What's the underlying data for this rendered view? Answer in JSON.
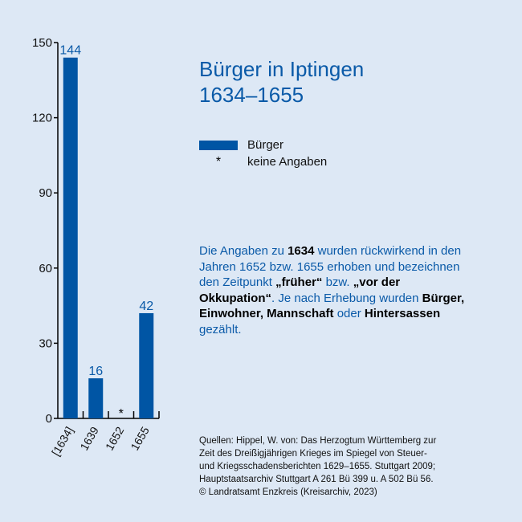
{
  "title_lines": [
    "Bürger in Iptingen",
    "1634–1655"
  ],
  "legend": {
    "series_label": "Bürger",
    "no_data_symbol": "*",
    "no_data_label": "keine Angaben"
  },
  "note": {
    "p1": "Die Angaben zu ",
    "b1": "1634",
    "p2": " wurden rückwirkend in den Jahren 1652 bzw. 1655 erhoben und bezeichnen den Zeitpunkt ",
    "b2": "„früher“",
    "p3": " bzw. ",
    "b3": "„vor der Okkupation“",
    "p4": ". Je nach Erhebung wurden ",
    "b4": "Bürger, Einwohner, Mannschaft",
    "p5": " oder ",
    "b5": "Hintersassen",
    "p6": " gezählt."
  },
  "sources": [
    "Quellen: Hippel, W. von: Das Herzogtum Württemberg zur",
    "Zeit des Dreißigjährigen Krieges im Spiegel von Steuer-",
    "und Kriegsschadensberichten 1629–1655. Stuttgart 2009;",
    "Hauptstaatsarchiv Stuttgart A 261 Bü 399 u. A 502 Bü 56.",
    "© Landratsamt Enzkreis (Kreisarchiv, 2023)"
  ],
  "colors": {
    "bar": "#0055a4",
    "label": "#0a5aa8",
    "background": "#dde8f5"
  },
  "chart_data": {
    "type": "bar",
    "categories": [
      "[1634]",
      "1639",
      "1652",
      "1655"
    ],
    "values": [
      144,
      16,
      null,
      42
    ],
    "missing_marker": "*",
    "ylim": [
      0,
      150
    ],
    "yticks": [
      0,
      30,
      60,
      90,
      120,
      150
    ],
    "grid": false,
    "legend_position": "right"
  }
}
